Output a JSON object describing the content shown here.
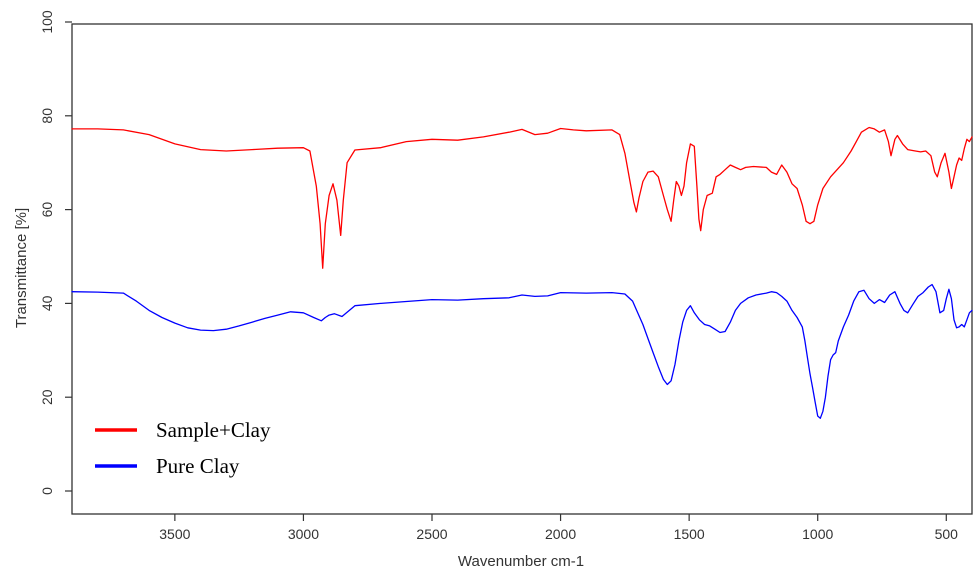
{
  "chart_data": {
    "type": "line",
    "title": "",
    "xlabel": "Wavenumber cm-1",
    "ylabel": "Transmittance [%]",
    "xlim": [
      3900,
      400
    ],
    "ylim": [
      0,
      100
    ],
    "x_reversed": true,
    "grid": false,
    "legend_position": "bottom-left",
    "x_ticks": [
      3500,
      3000,
      2500,
      2000,
      1500,
      1000,
      500
    ],
    "y_ticks": [
      0,
      20,
      40,
      60,
      80,
      100
    ],
    "series": [
      {
        "name": "Sample+Clay",
        "color": "#ff0000",
        "points": [
          [
            3900,
            77.2
          ],
          [
            3800,
            77.2
          ],
          [
            3700,
            77.0
          ],
          [
            3600,
            76.0
          ],
          [
            3500,
            74.0
          ],
          [
            3400,
            72.8
          ],
          [
            3300,
            72.5
          ],
          [
            3200,
            72.8
          ],
          [
            3100,
            73.1
          ],
          [
            3000,
            73.2
          ],
          [
            2975,
            72.5
          ],
          [
            2950,
            65.0
          ],
          [
            2935,
            57.0
          ],
          [
            2925,
            47.5
          ],
          [
            2915,
            57.0
          ],
          [
            2900,
            63.0
          ],
          [
            2885,
            65.5
          ],
          [
            2870,
            62.0
          ],
          [
            2855,
            54.5
          ],
          [
            2845,
            62.0
          ],
          [
            2830,
            70.0
          ],
          [
            2800,
            72.7
          ],
          [
            2700,
            73.2
          ],
          [
            2600,
            74.5
          ],
          [
            2500,
            75.0
          ],
          [
            2400,
            74.8
          ],
          [
            2300,
            75.5
          ],
          [
            2200,
            76.5
          ],
          [
            2150,
            77.1
          ],
          [
            2100,
            76.0
          ],
          [
            2050,
            76.3
          ],
          [
            2000,
            77.3
          ],
          [
            1950,
            77.0
          ],
          [
            1900,
            76.8
          ],
          [
            1800,
            77.0
          ],
          [
            1770,
            76.0
          ],
          [
            1750,
            72.0
          ],
          [
            1730,
            66.0
          ],
          [
            1715,
            61.5
          ],
          [
            1705,
            59.5
          ],
          [
            1695,
            62.5
          ],
          [
            1680,
            66.0
          ],
          [
            1660,
            68.0
          ],
          [
            1640,
            68.2
          ],
          [
            1620,
            67.0
          ],
          [
            1600,
            63.0
          ],
          [
            1585,
            60.0
          ],
          [
            1570,
            57.5
          ],
          [
            1560,
            62.0
          ],
          [
            1550,
            66.0
          ],
          [
            1540,
            65.0
          ],
          [
            1530,
            63.0
          ],
          [
            1520,
            65.0
          ],
          [
            1510,
            70.0
          ],
          [
            1495,
            74.0
          ],
          [
            1480,
            73.5
          ],
          [
            1470,
            65.0
          ],
          [
            1462,
            58.0
          ],
          [
            1455,
            55.5
          ],
          [
            1445,
            60.0
          ],
          [
            1430,
            63.0
          ],
          [
            1410,
            63.5
          ],
          [
            1395,
            67.0
          ],
          [
            1380,
            67.5
          ],
          [
            1360,
            68.5
          ],
          [
            1340,
            69.5
          ],
          [
            1320,
            69.0
          ],
          [
            1300,
            68.5
          ],
          [
            1280,
            69.0
          ],
          [
            1250,
            69.2
          ],
          [
            1200,
            69.0
          ],
          [
            1180,
            68.0
          ],
          [
            1160,
            67.5
          ],
          [
            1140,
            69.5
          ],
          [
            1120,
            68.0
          ],
          [
            1100,
            65.5
          ],
          [
            1080,
            64.5
          ],
          [
            1060,
            61.0
          ],
          [
            1045,
            57.5
          ],
          [
            1030,
            57.0
          ],
          [
            1015,
            57.5
          ],
          [
            1000,
            61.0
          ],
          [
            980,
            64.5
          ],
          [
            950,
            67.0
          ],
          [
            900,
            70.0
          ],
          [
            870,
            72.5
          ],
          [
            850,
            74.5
          ],
          [
            830,
            76.5
          ],
          [
            800,
            77.5
          ],
          [
            780,
            77.2
          ],
          [
            760,
            76.5
          ],
          [
            740,
            77.0
          ],
          [
            725,
            74.5
          ],
          [
            715,
            71.5
          ],
          [
            700,
            75.0
          ],
          [
            690,
            75.8
          ],
          [
            670,
            74.0
          ],
          [
            650,
            72.8
          ],
          [
            620,
            72.5
          ],
          [
            600,
            72.3
          ],
          [
            580,
            72.5
          ],
          [
            560,
            71.5
          ],
          [
            545,
            68.0
          ],
          [
            535,
            67.0
          ],
          [
            520,
            70.0
          ],
          [
            505,
            72.0
          ],
          [
            490,
            68.0
          ],
          [
            480,
            64.5
          ],
          [
            470,
            67.0
          ],
          [
            460,
            69.5
          ],
          [
            450,
            71.0
          ],
          [
            440,
            70.5
          ],
          [
            430,
            73.0
          ],
          [
            420,
            75.0
          ],
          [
            410,
            74.5
          ],
          [
            400,
            75.5
          ]
        ]
      },
      {
        "name": "Pure Clay",
        "color": "#0000ff",
        "points": [
          [
            3900,
            42.5
          ],
          [
            3800,
            42.4
          ],
          [
            3700,
            42.2
          ],
          [
            3650,
            40.5
          ],
          [
            3600,
            38.5
          ],
          [
            3550,
            37.0
          ],
          [
            3500,
            35.8
          ],
          [
            3450,
            34.8
          ],
          [
            3400,
            34.3
          ],
          [
            3350,
            34.2
          ],
          [
            3300,
            34.5
          ],
          [
            3250,
            35.2
          ],
          [
            3200,
            36.0
          ],
          [
            3150,
            36.8
          ],
          [
            3100,
            37.5
          ],
          [
            3050,
            38.2
          ],
          [
            3000,
            38.0
          ],
          [
            2960,
            37.0
          ],
          [
            2930,
            36.3
          ],
          [
            2915,
            37.0
          ],
          [
            2900,
            37.5
          ],
          [
            2880,
            37.8
          ],
          [
            2850,
            37.2
          ],
          [
            2800,
            39.5
          ],
          [
            2700,
            40.0
          ],
          [
            2600,
            40.4
          ],
          [
            2500,
            40.8
          ],
          [
            2400,
            40.7
          ],
          [
            2300,
            41.0
          ],
          [
            2200,
            41.2
          ],
          [
            2150,
            41.8
          ],
          [
            2100,
            41.5
          ],
          [
            2050,
            41.6
          ],
          [
            2000,
            42.3
          ],
          [
            1900,
            42.2
          ],
          [
            1800,
            42.3
          ],
          [
            1750,
            42.0
          ],
          [
            1720,
            40.5
          ],
          [
            1700,
            38.0
          ],
          [
            1680,
            35.5
          ],
          [
            1660,
            32.5
          ],
          [
            1640,
            29.5
          ],
          [
            1620,
            26.5
          ],
          [
            1600,
            23.8
          ],
          [
            1585,
            22.7
          ],
          [
            1570,
            23.5
          ],
          [
            1555,
            27.0
          ],
          [
            1540,
            32.0
          ],
          [
            1525,
            36.0
          ],
          [
            1510,
            38.5
          ],
          [
            1495,
            39.5
          ],
          [
            1480,
            38.0
          ],
          [
            1460,
            36.5
          ],
          [
            1440,
            35.5
          ],
          [
            1420,
            35.2
          ],
          [
            1400,
            34.5
          ],
          [
            1380,
            33.8
          ],
          [
            1360,
            34.0
          ],
          [
            1340,
            36.0
          ],
          [
            1320,
            38.5
          ],
          [
            1300,
            40.0
          ],
          [
            1270,
            41.2
          ],
          [
            1240,
            41.8
          ],
          [
            1200,
            42.2
          ],
          [
            1180,
            42.5
          ],
          [
            1160,
            42.3
          ],
          [
            1140,
            41.5
          ],
          [
            1120,
            40.5
          ],
          [
            1100,
            38.5
          ],
          [
            1080,
            37.0
          ],
          [
            1060,
            35.0
          ],
          [
            1050,
            32.0
          ],
          [
            1040,
            28.5
          ],
          [
            1030,
            25.0
          ],
          [
            1020,
            22.0
          ],
          [
            1010,
            19.0
          ],
          [
            1000,
            16.0
          ],
          [
            990,
            15.5
          ],
          [
            980,
            17.0
          ],
          [
            970,
            20.0
          ],
          [
            960,
            24.5
          ],
          [
            950,
            28.0
          ],
          [
            940,
            29.0
          ],
          [
            930,
            29.5
          ],
          [
            920,
            32.0
          ],
          [
            900,
            35.0
          ],
          [
            880,
            37.5
          ],
          [
            860,
            40.5
          ],
          [
            840,
            42.5
          ],
          [
            820,
            42.8
          ],
          [
            800,
            41.0
          ],
          [
            780,
            40.0
          ],
          [
            760,
            40.8
          ],
          [
            740,
            40.2
          ],
          [
            720,
            41.8
          ],
          [
            700,
            42.5
          ],
          [
            680,
            40.0
          ],
          [
            665,
            38.5
          ],
          [
            650,
            38.0
          ],
          [
            630,
            39.8
          ],
          [
            610,
            41.5
          ],
          [
            590,
            42.3
          ],
          [
            570,
            43.5
          ],
          [
            555,
            44.0
          ],
          [
            540,
            42.5
          ],
          [
            525,
            38.0
          ],
          [
            510,
            38.5
          ],
          [
            500,
            41.0
          ],
          [
            490,
            43.0
          ],
          [
            480,
            41.0
          ],
          [
            470,
            36.5
          ],
          [
            460,
            34.8
          ],
          [
            450,
            35.0
          ],
          [
            440,
            35.5
          ],
          [
            430,
            35.0
          ],
          [
            420,
            36.5
          ],
          [
            410,
            38.0
          ],
          [
            400,
            38.5
          ]
        ]
      }
    ]
  }
}
